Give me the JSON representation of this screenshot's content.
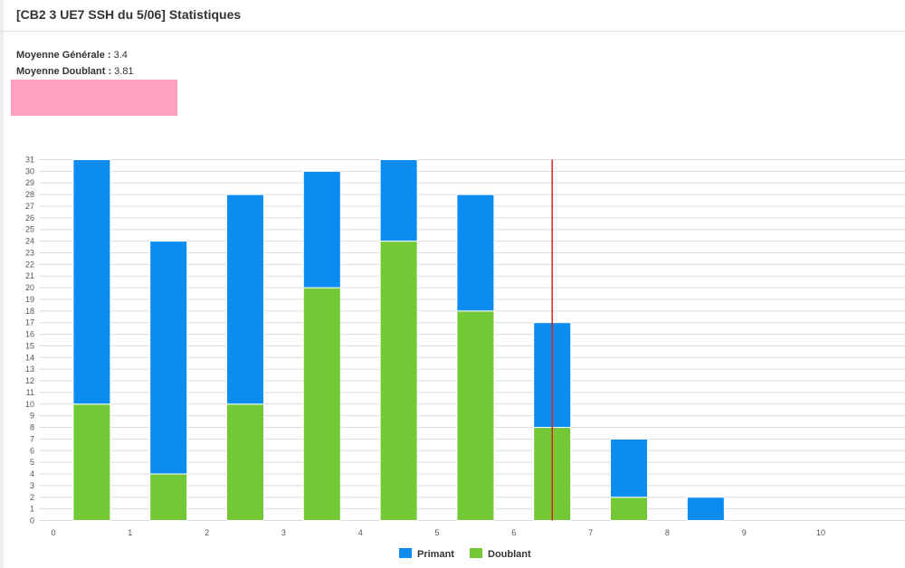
{
  "header": {
    "title": "[CB2 3 UE7 SSH du 5/06] Statistiques"
  },
  "stats": {
    "generale_label": "Moyenne Générale :",
    "generale_value": "3.4",
    "doublant_label": "Moyenne Doublant :",
    "doublant_value": "3.81"
  },
  "colors": {
    "primant": "#0a8cf0",
    "doublant": "#73c935",
    "mean_line": "#e02020",
    "highlight_box": "#ff9fc1"
  },
  "chart_data": {
    "type": "bar",
    "stacked": true,
    "categories": [
      "0",
      "1",
      "2",
      "3",
      "4",
      "5",
      "6",
      "7",
      "8",
      "9",
      "10"
    ],
    "series": [
      {
        "name": "Doublant",
        "values": [
          10,
          4,
          10,
          20,
          24,
          18,
          8,
          2,
          0,
          0,
          0
        ]
      },
      {
        "name": "Primant",
        "values": [
          21,
          20,
          18,
          10,
          7,
          10,
          9,
          5,
          2,
          0,
          0
        ]
      }
    ],
    "ylim": [
      0,
      31
    ],
    "yticks": [
      "0",
      "1",
      "2",
      "3",
      "4",
      "5",
      "6",
      "7",
      "8",
      "9",
      "10",
      "11",
      "12",
      "13",
      "14",
      "15",
      "16",
      "17",
      "18",
      "19",
      "20",
      "21",
      "22",
      "23",
      "24",
      "25",
      "26",
      "27",
      "28",
      "29",
      "30",
      "31"
    ],
    "mean_marker": 6.5,
    "grid": true,
    "legend_position": "bottom-center",
    "legend": [
      "Primant",
      "Doublant"
    ]
  }
}
